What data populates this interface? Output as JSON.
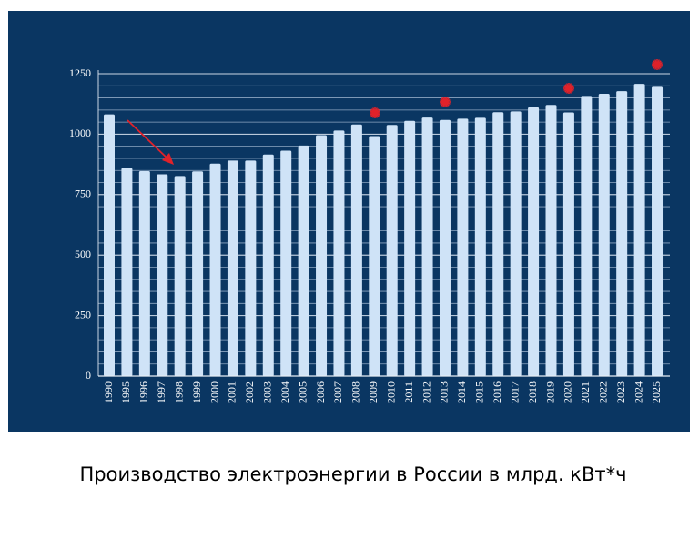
{
  "chart_data": {
    "type": "bar",
    "title": "Производство электроэнергии в России в млрд. кВт*ч",
    "categories": [
      "1990",
      "1995",
      "1996",
      "1997",
      "1998",
      "1999",
      "2000",
      "2001",
      "2002",
      "2003",
      "2004",
      "2005",
      "2006",
      "2007",
      "2008",
      "2009",
      "2010",
      "2011",
      "2012",
      "2013",
      "2014",
      "2015",
      "2016",
      "2017",
      "2018",
      "2019",
      "2020",
      "2021",
      "2022",
      "2023",
      "2024",
      "2025"
    ],
    "values": [
      1082,
      860,
      847,
      834,
      827,
      846,
      878,
      891,
      891,
      916,
      932,
      953,
      996,
      1015,
      1040,
      992,
      1038,
      1055,
      1069,
      1059,
      1064,
      1068,
      1091,
      1094,
      1111,
      1121,
      1090,
      1158,
      1167,
      1178,
      1208,
      1196
    ],
    "color": "#cfe3f7",
    "ylim": [
      0,
      1250
    ],
    "yticks": [
      0,
      250,
      500,
      750,
      1000,
      1250
    ],
    "grid": true,
    "grid_step": 50
  }
}
